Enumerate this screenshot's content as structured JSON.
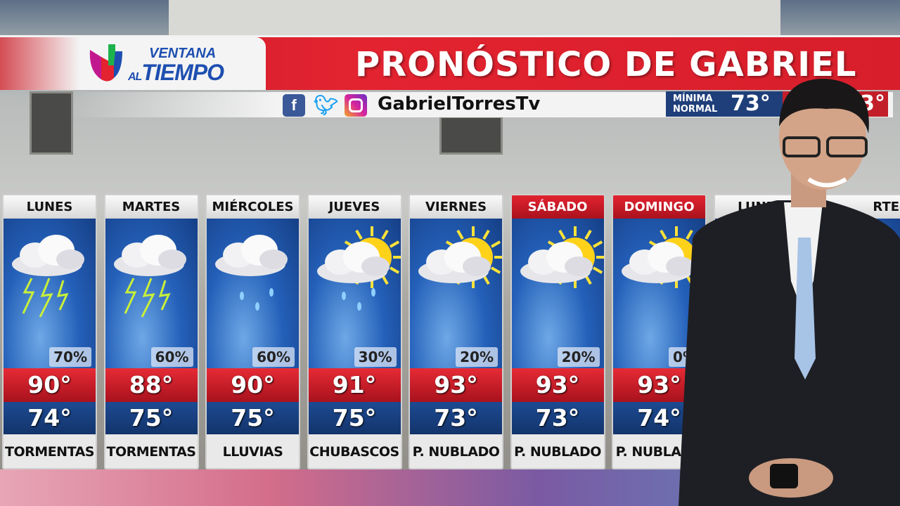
{
  "header": {
    "logo_line1": "VENTANA",
    "logo_line2_small": "AL",
    "logo_line2": "TIEMPO",
    "title": "PRONÓSTICO DE GABRIEL"
  },
  "social": {
    "icons": [
      "facebook-icon",
      "twitter-icon",
      "instagram-icon"
    ],
    "handle": "GabrielTorresTv"
  },
  "normals": {
    "min_label_1": "MÍNIMA",
    "min_label_2": "NORMAL",
    "min_value": "73°",
    "max_value_partial": "3°"
  },
  "colors": {
    "red": "#e32330",
    "blue": "#1f3f7a",
    "sky": "#2460b9"
  },
  "days": [
    {
      "day": "LUNES",
      "weekend": false,
      "icon": "thunderstorm-icon",
      "precip": "70%",
      "high": "90°",
      "low": "74°",
      "condition": "TORMENTAS"
    },
    {
      "day": "MARTES",
      "weekend": false,
      "icon": "thunderstorm-icon",
      "precip": "60%",
      "high": "88°",
      "low": "75°",
      "condition": "TORMENTAS"
    },
    {
      "day": "MIÉRCOLES",
      "weekend": false,
      "icon": "rain-cloud-icon",
      "precip": "60%",
      "high": "90°",
      "low": "75°",
      "condition": "LLUVIAS"
    },
    {
      "day": "JUEVES",
      "weekend": false,
      "icon": "sun-showers-icon",
      "precip": "30%",
      "high": "91°",
      "low": "75°",
      "condition": "CHUBASCOS"
    },
    {
      "day": "VIERNES",
      "weekend": false,
      "icon": "partly-cloudy-icon",
      "precip": "20%",
      "high": "93°",
      "low": "73°",
      "condition": "P. NUBLADO"
    },
    {
      "day": "SÁBADO",
      "weekend": true,
      "icon": "partly-cloudy-icon",
      "precip": "20%",
      "high": "93°",
      "low": "73°",
      "condition": "P. NUBLADO"
    },
    {
      "day": "DOMINGO",
      "weekend": true,
      "icon": "partly-cloudy-icon",
      "precip": "0%",
      "high": "93°",
      "low": "74°",
      "condition": "P. NUBLADO"
    },
    {
      "day": "LUNES",
      "weekend": false,
      "icon": "",
      "precip": "",
      "high": "",
      "low": "",
      "condition": ""
    },
    {
      "day": "RTES",
      "weekend": false,
      "icon": "",
      "precip": "",
      "high": "",
      "low": "",
      "condition": ""
    }
  ]
}
